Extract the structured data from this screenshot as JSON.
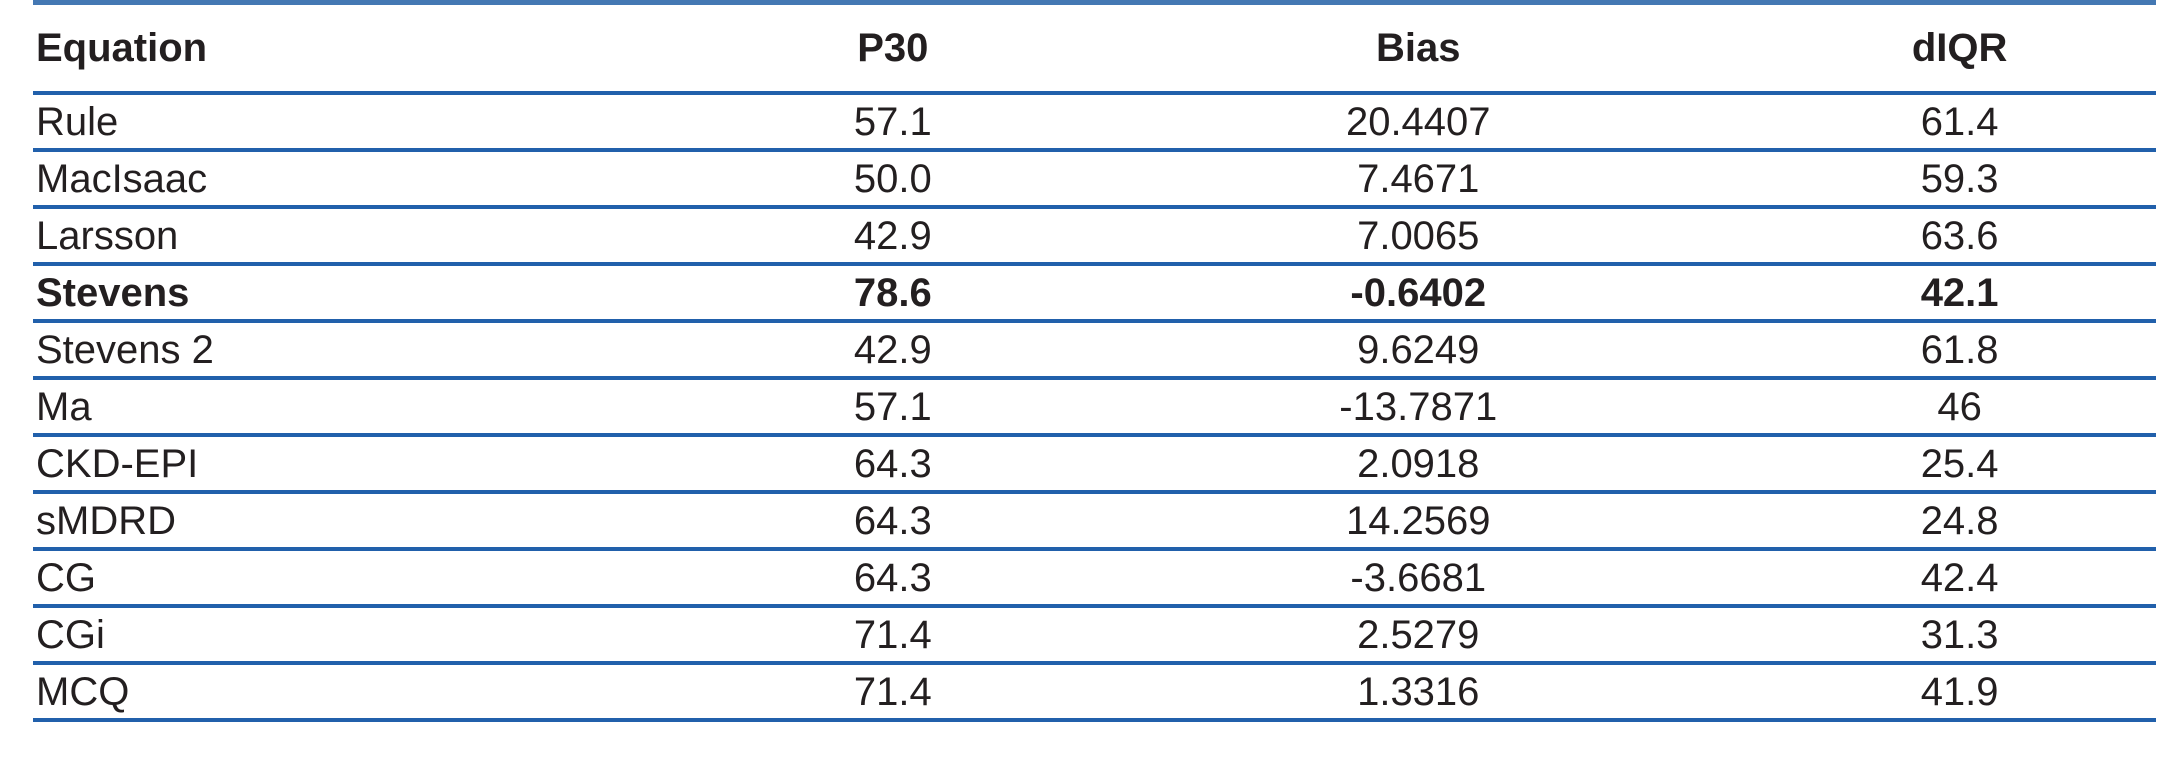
{
  "colors": {
    "rule_blue": "#2160ab",
    "top_rule_blue": "#4478b3",
    "text": "#231f20"
  },
  "table": {
    "columns": [
      {
        "key": "equation",
        "label": "Equation"
      },
      {
        "key": "p30",
        "label": "P30"
      },
      {
        "key": "bias",
        "label": "Bias"
      },
      {
        "key": "diqr",
        "label": "dIQR"
      }
    ],
    "rows": [
      {
        "equation": "Rule",
        "p30": "57.1",
        "bias": "20.4407",
        "diqr": "61.4",
        "bold": false
      },
      {
        "equation": "MacIsaac",
        "p30": "50.0",
        "bias": "7.4671",
        "diqr": "59.3",
        "bold": false
      },
      {
        "equation": "Larsson",
        "p30": "42.9",
        "bias": "7.0065",
        "diqr": "63.6",
        "bold": false
      },
      {
        "equation": "Stevens",
        "p30": "78.6",
        "bias": "-0.6402",
        "diqr": "42.1",
        "bold": true
      },
      {
        "equation": "Stevens 2",
        "p30": "42.9",
        "bias": "9.6249",
        "diqr": "61.8",
        "bold": false
      },
      {
        "equation": "Ma",
        "p30": "57.1",
        "bias": "-13.7871",
        "diqr": "46",
        "bold": false
      },
      {
        "equation": "CKD-EPI",
        "p30": "64.3",
        "bias": "2.0918",
        "diqr": "25.4",
        "bold": false
      },
      {
        "equation": "sMDRD",
        "p30": "64.3",
        "bias": "14.2569",
        "diqr": "24.8",
        "bold": false
      },
      {
        "equation": "CG",
        "p30": "64.3",
        "bias": "-3.6681",
        "diqr": "42.4",
        "bold": false
      },
      {
        "equation": "CGi",
        "p30": "71.4",
        "bias": "2.5279",
        "diqr": "31.3",
        "bold": false
      },
      {
        "equation": "MCQ",
        "p30": "71.4",
        "bias": "1.3316",
        "diqr": "41.9",
        "bold": false
      }
    ]
  }
}
